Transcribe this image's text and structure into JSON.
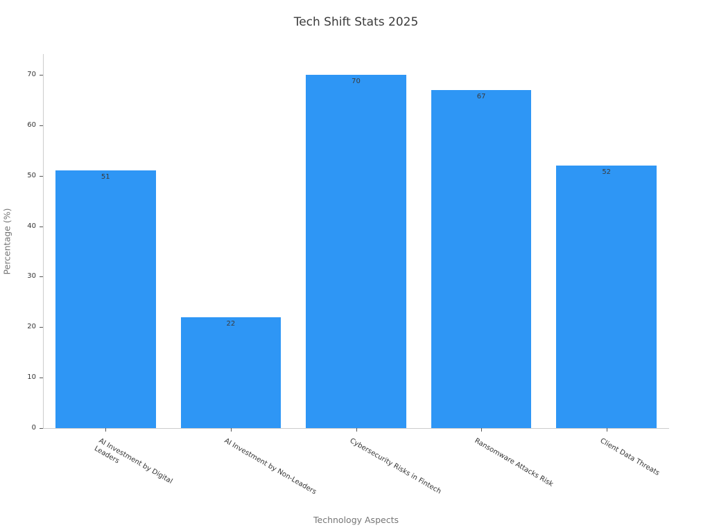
{
  "chart_data": {
    "type": "bar",
    "title": "Tech Shift Stats 2025",
    "xlabel": "Technology Aspects",
    "ylabel": "Percentage (%)",
    "categories": [
      "AI Investment by Digital Leaders",
      "AI Investment by Non-Leaders",
      "Cybersecurity Risks in Fintech",
      "Ransomware Attacks Risk",
      "Client Data Threats"
    ],
    "tick_labels": [
      "AI Investment by Digital\nLeaders",
      "AI Investment by Non-Leaders",
      "Cybersecurity Risks in Fintech",
      "Ransomware Attacks Risk",
      "Client Data Threats"
    ],
    "values": [
      51,
      22,
      70,
      67,
      52
    ],
    "value_labels": [
      "51",
      "22",
      "70",
      "67",
      "52"
    ],
    "yticks": [
      0,
      10,
      20,
      30,
      40,
      50,
      60,
      70
    ],
    "ylim": [
      0,
      74
    ],
    "grid": false,
    "legend": null,
    "bar_color": "#2e96f5",
    "title_color": "#3a3a3a",
    "axis_label_color": "#757575",
    "tick_label_color": "#333333",
    "spine_color": "#cccccc"
  }
}
